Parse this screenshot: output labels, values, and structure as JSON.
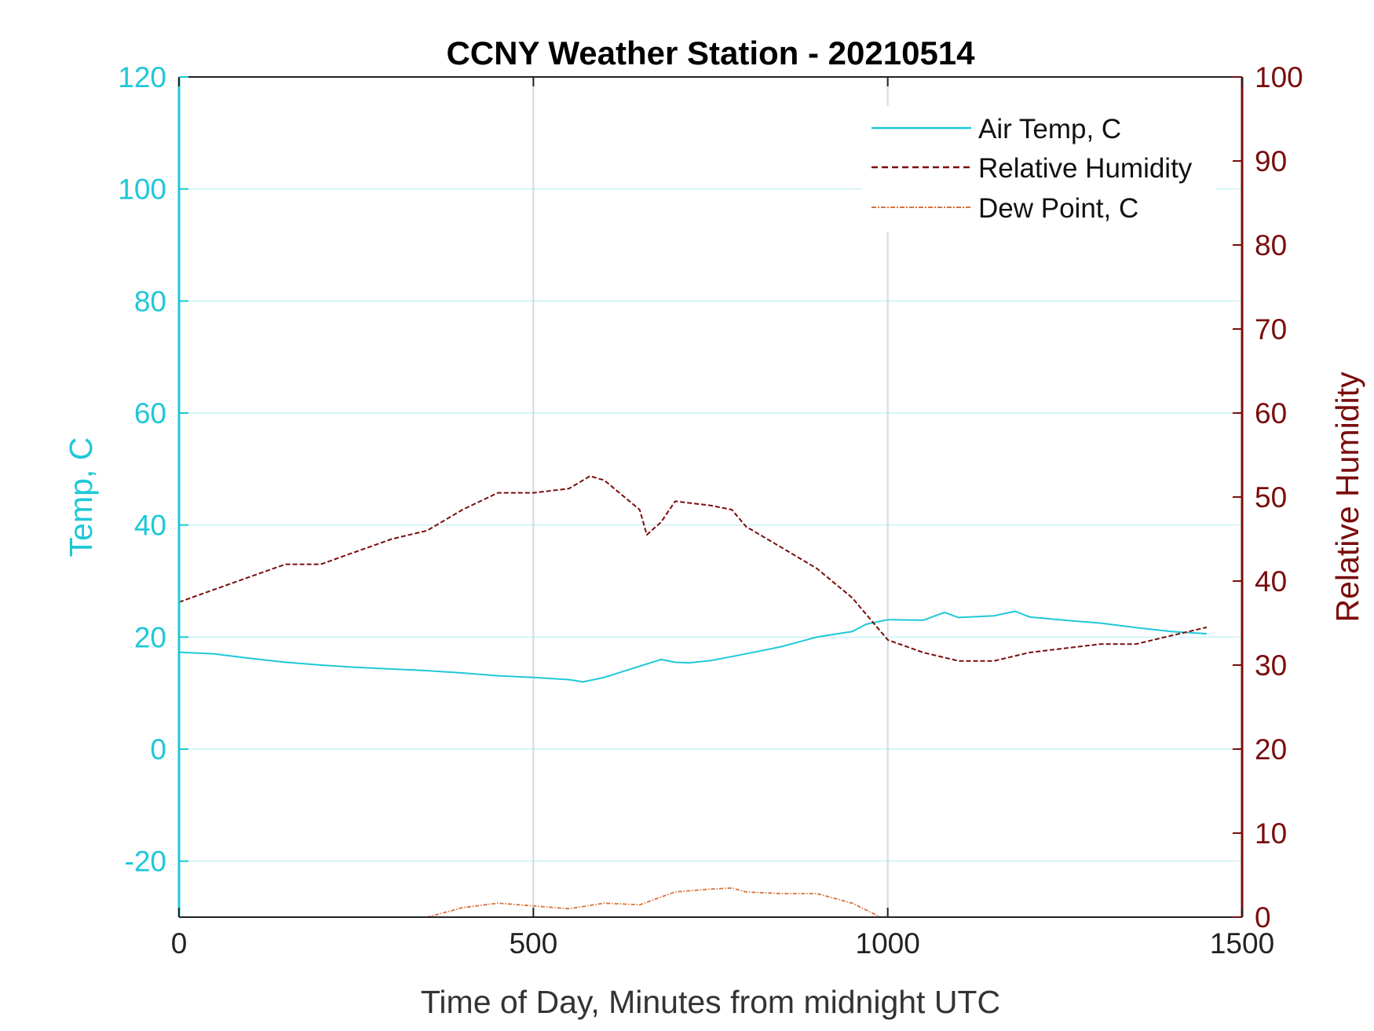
{
  "chart_data": {
    "type": "line",
    "title": "CCNY Weather Station - 20210514",
    "xlabel": "Time of Day, Minutes from midnight UTC",
    "ylabel_left": "Temp, C",
    "ylabel_right": "Relative Humidity",
    "xlim": [
      0,
      1500
    ],
    "ylim_left": [
      -30,
      120
    ],
    "ylim_right": [
      0,
      100
    ],
    "x_ticks": [
      "0",
      "500",
      "1000",
      "1500"
    ],
    "y_ticks_left": [
      "-20",
      "0",
      "20",
      "40",
      "60",
      "80",
      "100",
      "120"
    ],
    "y_ticks_right": [
      "0",
      "10",
      "20",
      "30",
      "40",
      "50",
      "60",
      "70",
      "80",
      "90",
      "100"
    ],
    "grid": true,
    "legend_position": "top-right",
    "colors": {
      "temp": "#1ec8d8",
      "rh": "#7a0c0c",
      "dew": "#d9713a",
      "grid_h": "#d8f3f7",
      "grid_v": "#d4dae0"
    },
    "series": [
      {
        "name": "Air Temp, C",
        "axis": "left",
        "style": "solid",
        "x": [
          0,
          50,
          100,
          150,
          200,
          250,
          300,
          350,
          400,
          450,
          500,
          550,
          570,
          600,
          650,
          680,
          700,
          720,
          750,
          800,
          850,
          900,
          950,
          970,
          1000,
          1050,
          1080,
          1100,
          1150,
          1180,
          1200,
          1250,
          1300,
          1350,
          1400,
          1450
        ],
        "values": [
          17.3,
          17.0,
          16.2,
          15.5,
          15.0,
          14.6,
          14.3,
          14.0,
          13.6,
          13.1,
          12.8,
          12.4,
          12.0,
          12.8,
          14.8,
          16.0,
          15.5,
          15.4,
          15.8,
          17.0,
          18.3,
          20.0,
          21.0,
          22.3,
          23.1,
          23.0,
          24.4,
          23.5,
          23.8,
          24.6,
          23.6,
          23.0,
          22.5,
          21.7,
          21.0,
          20.6
        ]
      },
      {
        "name": "Relative Humidity",
        "axis": "right",
        "style": "dashed",
        "x": [
          0,
          50,
          100,
          150,
          200,
          250,
          300,
          350,
          400,
          450,
          500,
          550,
          580,
          600,
          650,
          660,
          680,
          700,
          750,
          780,
          800,
          850,
          900,
          950,
          1000,
          1050,
          1100,
          1150,
          1200,
          1250,
          1300,
          1350,
          1400,
          1450
        ],
        "values": [
          37.5,
          39.0,
          40.5,
          42.0,
          42.0,
          43.5,
          45.0,
          46.0,
          48.5,
          50.5,
          50.5,
          51.0,
          52.5,
          52.0,
          48.5,
          45.5,
          47.0,
          49.5,
          49.0,
          48.5,
          46.5,
          44.0,
          41.5,
          38.0,
          33.0,
          31.5,
          30.5,
          30.5,
          31.5,
          32.0,
          32.5,
          32.5,
          33.5,
          34.5
        ]
      },
      {
        "name": "Dew Point, C",
        "axis": "left",
        "style": "dash-dot",
        "x": [
          350,
          380,
          400,
          450,
          500,
          550,
          600,
          650,
          700,
          750,
          780,
          800,
          850,
          900,
          950,
          990
        ],
        "values": [
          -30.0,
          -29.0,
          -28.3,
          -27.5,
          -28.0,
          -28.5,
          -27.5,
          -27.8,
          -25.5,
          -25.0,
          -24.8,
          -25.5,
          -25.8,
          -25.8,
          -27.5,
          -30.0
        ]
      }
    ]
  }
}
